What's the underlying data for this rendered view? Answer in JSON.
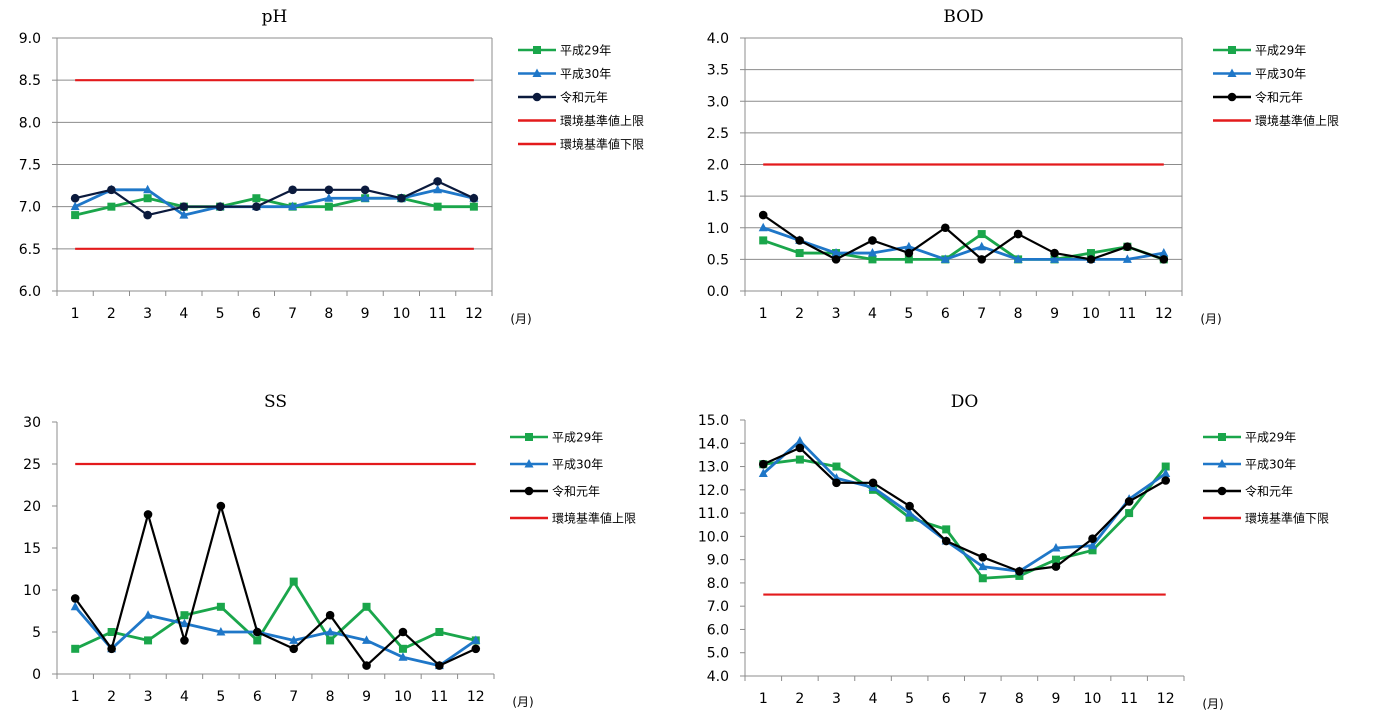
{
  "chart_data": [
    {
      "type": "line",
      "title": "pH",
      "xunit": "(月)",
      "categories": [
        "1",
        "2",
        "3",
        "4",
        "5",
        "6",
        "7",
        "8",
        "9",
        "10",
        "11",
        "12"
      ],
      "ylim": [
        6.0,
        9.0
      ],
      "yticks": [
        "6.0",
        "6.5",
        "7.0",
        "7.5",
        "8.0",
        "8.5",
        "9.0"
      ],
      "grid": true,
      "series": [
        {
          "name": "平成29年",
          "color": "#1aa64b",
          "marker": "square",
          "values": [
            6.9,
            7.0,
            7.1,
            7.0,
            7.0,
            7.1,
            7.0,
            7.0,
            7.1,
            7.1,
            7.0,
            7.0
          ]
        },
        {
          "name": "平成30年",
          "color": "#1f77c8",
          "marker": "triangle",
          "values": [
            7.0,
            7.2,
            7.2,
            6.9,
            7.0,
            7.0,
            7.0,
            7.1,
            7.1,
            7.1,
            7.2,
            7.1
          ]
        },
        {
          "name": "令和元年",
          "color": "#0b1a3d",
          "marker": "circle",
          "values": [
            7.1,
            7.2,
            6.9,
            7.0,
            7.0,
            7.0,
            7.2,
            7.2,
            7.2,
            7.1,
            7.3,
            7.1
          ]
        },
        {
          "name": "環境基準値上限",
          "color": "#e31a1c",
          "marker": "none",
          "values": [
            8.5,
            8.5,
            8.5,
            8.5,
            8.5,
            8.5,
            8.5,
            8.5,
            8.5,
            8.5,
            8.5,
            8.5
          ]
        },
        {
          "name": "環境基準値下限",
          "color": "#e31a1c",
          "marker": "none",
          "values": [
            6.5,
            6.5,
            6.5,
            6.5,
            6.5,
            6.5,
            6.5,
            6.5,
            6.5,
            6.5,
            6.5,
            6.5
          ]
        }
      ]
    },
    {
      "type": "line",
      "title": "BOD",
      "xunit": "(月)",
      "categories": [
        "1",
        "2",
        "3",
        "4",
        "5",
        "6",
        "7",
        "8",
        "9",
        "10",
        "11",
        "12"
      ],
      "ylim": [
        0.0,
        4.0
      ],
      "yticks": [
        "0.0",
        "0.5",
        "1.0",
        "1.5",
        "2.0",
        "2.5",
        "3.0",
        "3.5",
        "4.0"
      ],
      "grid": true,
      "series": [
        {
          "name": "平成29年",
          "color": "#1aa64b",
          "marker": "square",
          "values": [
            0.8,
            0.6,
            0.6,
            0.5,
            0.5,
            0.5,
            0.9,
            0.5,
            0.5,
            0.6,
            0.7,
            0.5
          ]
        },
        {
          "name": "平成30年",
          "color": "#1f77c8",
          "marker": "triangle",
          "values": [
            1.0,
            0.8,
            0.6,
            0.6,
            0.7,
            0.5,
            0.7,
            0.5,
            0.5,
            0.5,
            0.5,
            0.6
          ]
        },
        {
          "name": "令和元年",
          "color": "#000000",
          "marker": "circle",
          "values": [
            1.2,
            0.8,
            0.5,
            0.8,
            0.6,
            1.0,
            0.5,
            0.9,
            0.6,
            0.5,
            0.7,
            0.5
          ]
        },
        {
          "name": "環境基準値上限",
          "color": "#e31a1c",
          "marker": "none",
          "values": [
            2.0,
            2.0,
            2.0,
            2.0,
            2.0,
            2.0,
            2.0,
            2.0,
            2.0,
            2.0,
            2.0,
            2.0
          ]
        }
      ]
    },
    {
      "type": "line",
      "title": "SS",
      "xunit": "(月)",
      "categories": [
        "1",
        "2",
        "3",
        "4",
        "5",
        "6",
        "7",
        "8",
        "9",
        "10",
        "11",
        "12"
      ],
      "ylim": [
        0,
        30
      ],
      "yticks": [
        "0",
        "5",
        "10",
        "15",
        "20",
        "25",
        "30"
      ],
      "grid": false,
      "series": [
        {
          "name": "平成29年",
          "color": "#1aa64b",
          "marker": "square",
          "values": [
            3,
            5,
            4,
            7,
            8,
            4,
            11,
            4,
            8,
            3,
            5,
            4
          ]
        },
        {
          "name": "平成30年",
          "color": "#1f77c8",
          "marker": "triangle",
          "values": [
            8,
            3,
            7,
            6,
            5,
            5,
            4,
            5,
            4,
            2,
            1,
            4
          ]
        },
        {
          "name": "令和元年",
          "color": "#000000",
          "marker": "circle",
          "values": [
            9,
            3,
            19,
            4,
            20,
            5,
            3,
            7,
            1,
            5,
            1,
            3
          ]
        },
        {
          "name": "環境基準値上限",
          "color": "#e31a1c",
          "marker": "none",
          "values": [
            25,
            25,
            25,
            25,
            25,
            25,
            25,
            25,
            25,
            25,
            25,
            25
          ]
        }
      ]
    },
    {
      "type": "line",
      "title": "DO",
      "xunit": "(月)",
      "categories": [
        "1",
        "2",
        "3",
        "4",
        "5",
        "6",
        "7",
        "8",
        "9",
        "10",
        "11",
        "12"
      ],
      "ylim": [
        4.0,
        15.0
      ],
      "yticks": [
        "4.0",
        "5.0",
        "6.0",
        "7.0",
        "8.0",
        "9.0",
        "10.0",
        "11.0",
        "12.0",
        "13.0",
        "14.0",
        "15.0"
      ],
      "grid": false,
      "series": [
        {
          "name": "平成29年",
          "color": "#1aa64b",
          "marker": "square",
          "values": [
            13.1,
            13.3,
            13.0,
            12.0,
            10.8,
            10.3,
            8.2,
            8.3,
            9.0,
            9.4,
            11.0,
            13.0
          ]
        },
        {
          "name": "平成30年",
          "color": "#1f77c8",
          "marker": "triangle",
          "values": [
            12.7,
            14.1,
            12.5,
            12.1,
            11.0,
            9.8,
            8.7,
            8.5,
            9.5,
            9.6,
            11.6,
            12.7
          ]
        },
        {
          "name": "令和元年",
          "color": "#000000",
          "marker": "circle",
          "values": [
            13.1,
            13.8,
            12.3,
            12.3,
            11.3,
            9.8,
            9.1,
            8.5,
            8.7,
            9.9,
            11.5,
            12.4
          ]
        },
        {
          "name": "環境基準値下限",
          "color": "#e31a1c",
          "marker": "none",
          "values": [
            7.5,
            7.5,
            7.5,
            7.5,
            7.5,
            7.5,
            7.5,
            7.5,
            7.5,
            7.5,
            7.5,
            7.5
          ]
        }
      ]
    }
  ]
}
